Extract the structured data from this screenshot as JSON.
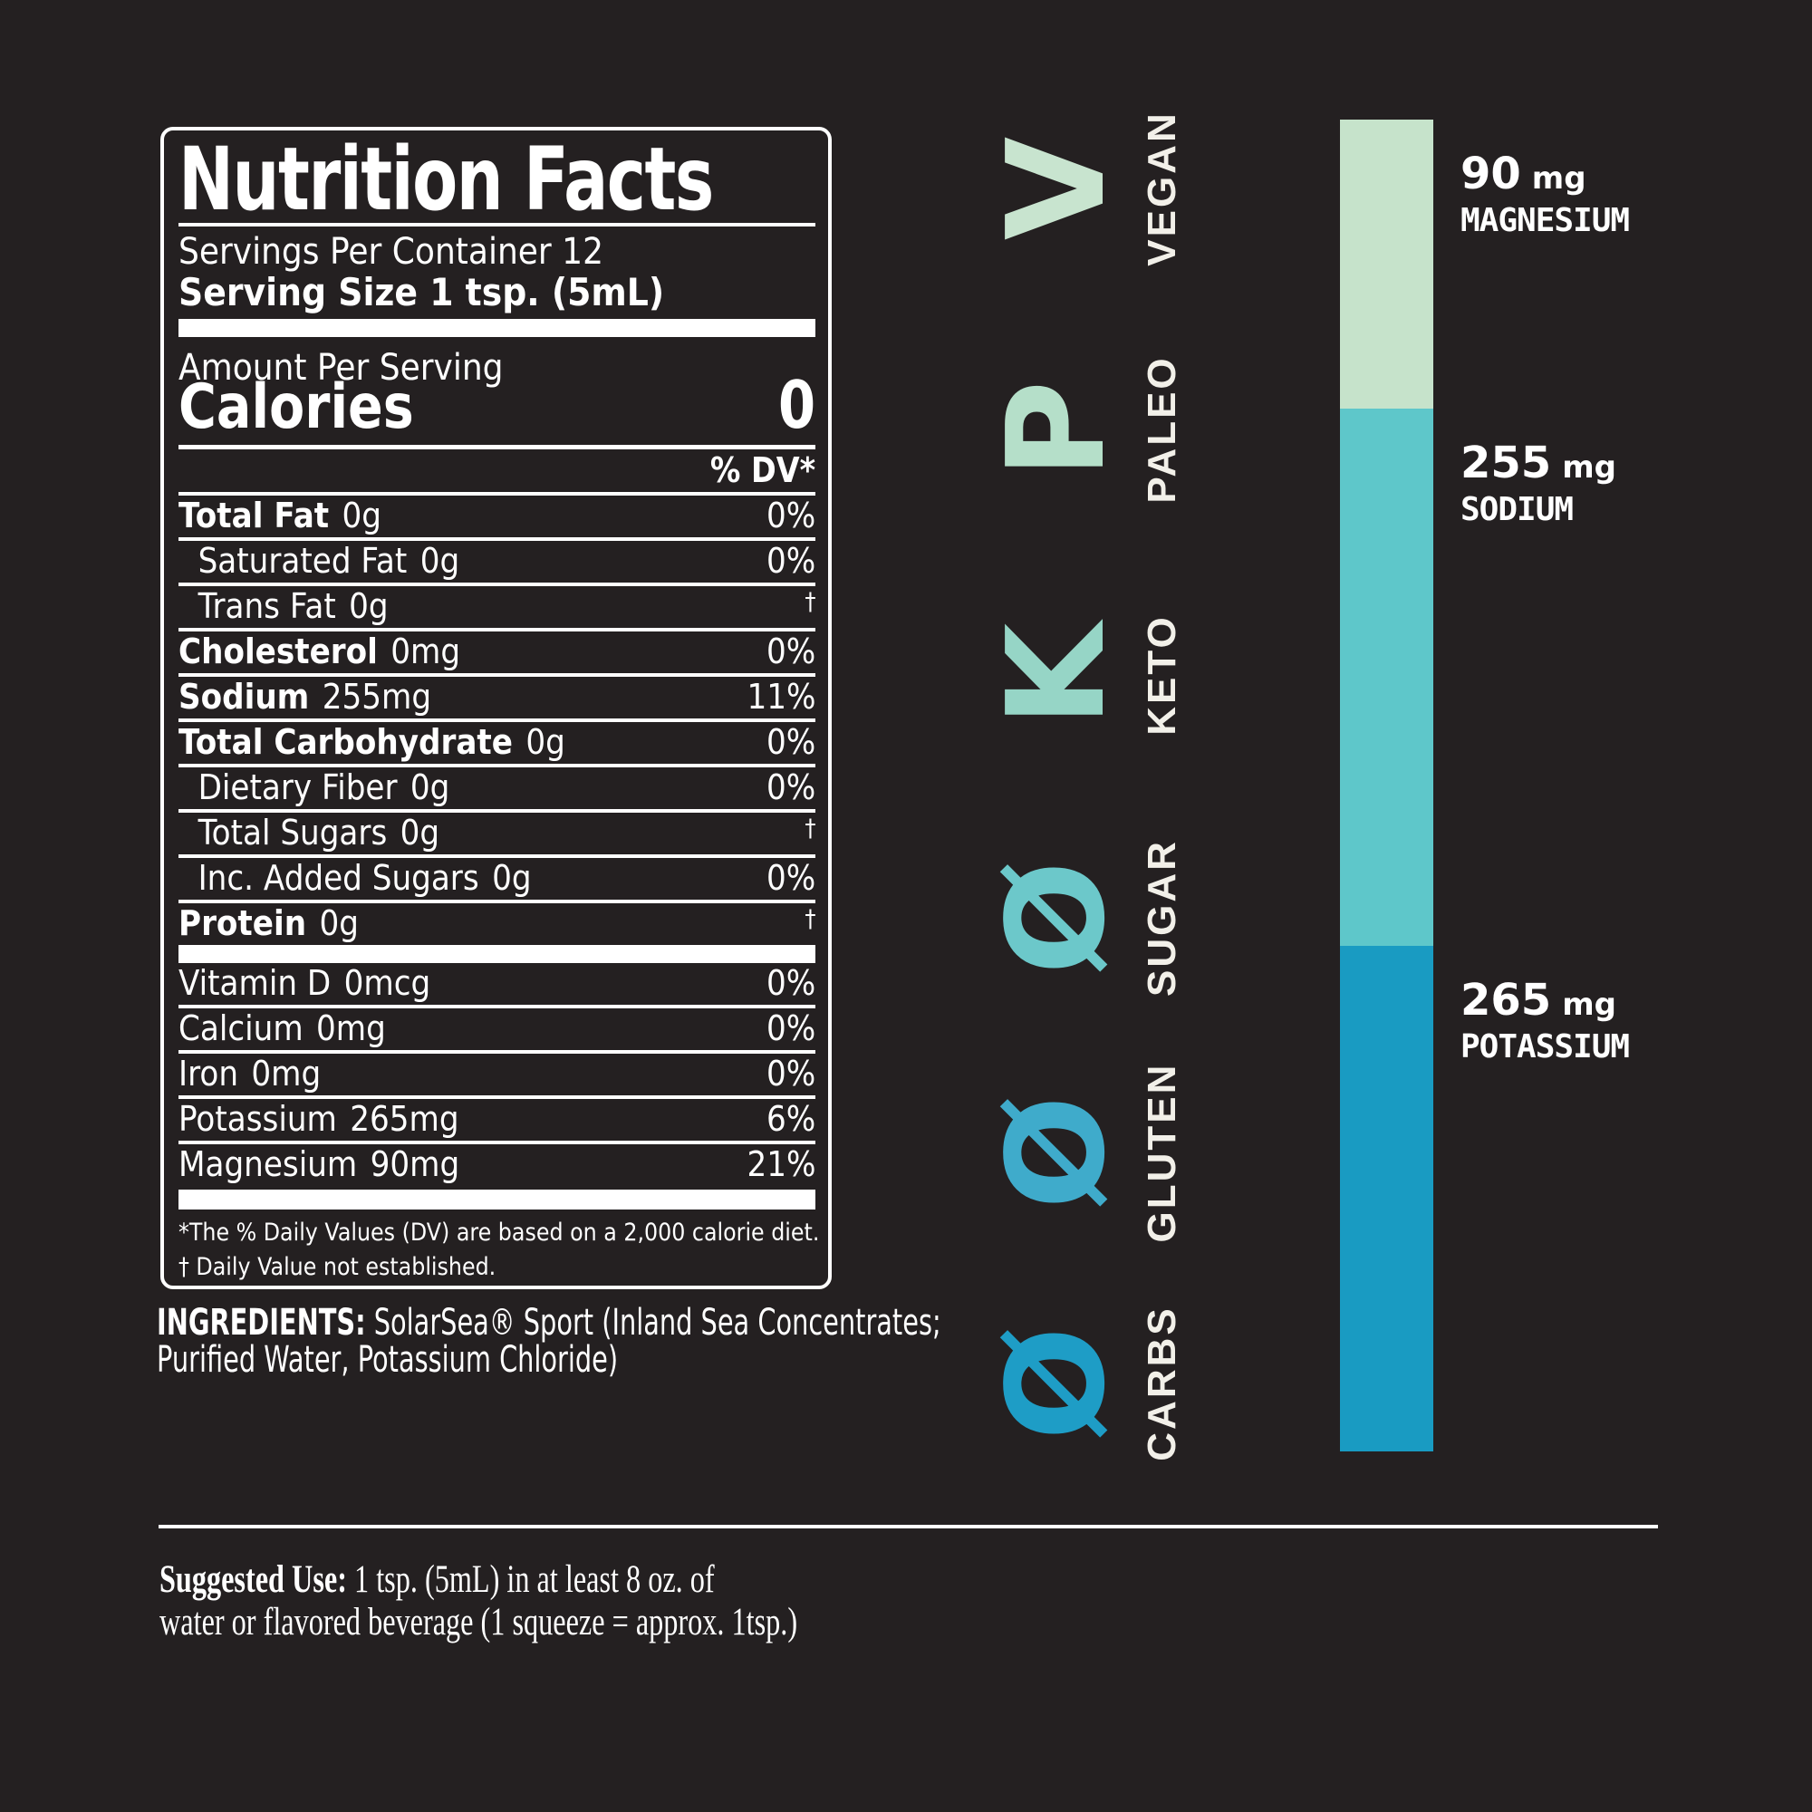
{
  "background": "#242021",
  "label": {
    "title": "Nutrition Facts",
    "servings_per_container": "Servings Per Container 12",
    "serving_size": "Serving Size 1 tsp. (5mL)",
    "amount_per_serving": "Amount Per Serving",
    "calories_label": "Calories",
    "calories_value": "0",
    "dv_header": "% DV*",
    "rows": [
      {
        "label": "Total Fat",
        "value": "0g",
        "dv": "0%",
        "bold": true,
        "indent": false
      },
      {
        "label": "Saturated Fat",
        "value": "0g",
        "dv": "0%",
        "bold": false,
        "indent": true
      },
      {
        "label": "Trans Fat",
        "value": "0g",
        "dv": "†",
        "bold": false,
        "indent": true
      },
      {
        "label": "Cholesterol",
        "value": "0mg",
        "dv": "0%",
        "bold": true,
        "indent": false
      },
      {
        "label": "Sodium",
        "value": "255mg",
        "dv": "11%",
        "bold": true,
        "indent": false
      },
      {
        "label": "Total Carbohydrate",
        "value": "0g",
        "dv": "0%",
        "bold": true,
        "indent": false
      },
      {
        "label": "Dietary Fiber",
        "value": "0g",
        "dv": "0%",
        "bold": false,
        "indent": true
      },
      {
        "label": "Total Sugars",
        "value": "0g",
        "dv": "†",
        "bold": false,
        "indent": true
      },
      {
        "label": "Inc. Added Sugars",
        "value": "0g",
        "dv": "0%",
        "bold": false,
        "indent": true
      },
      {
        "label": "Protein",
        "value": "0g",
        "dv": "†",
        "bold": true,
        "indent": false
      }
    ],
    "micronutrient_rows": [
      {
        "label": "Vitamin D",
        "value": "0mcg",
        "dv": "0%"
      },
      {
        "label": "Calcium",
        "value": "0mg",
        "dv": "0%"
      },
      {
        "label": "Iron",
        "value": "0mg",
        "dv": "0%"
      },
      {
        "label": "Potassium",
        "value": "265mg",
        "dv": "6%"
      },
      {
        "label": "Magnesium",
        "value": "90mg",
        "dv": "21%"
      }
    ],
    "footnote_dv": "*The % Daily Values (DV) are based on a 2,000 calorie diet.",
    "footnote_dagger": "† Daily Value not established."
  },
  "ingredients": {
    "label": "INGREDIENTS:",
    "lines": [
      "SolarSea® Sport (Inland Sea Concentrates;",
      "Purified Water, Potassium Chloride)"
    ]
  },
  "badges": [
    {
      "glyph": "V",
      "label": "VEGAN",
      "color": "#c8e4cf"
    },
    {
      "glyph": "P",
      "label": "PALEO",
      "color": "#b5dfc9"
    },
    {
      "glyph": "K",
      "label": "KETO",
      "color": "#96d5c6"
    },
    {
      "glyph": "Ø",
      "label": "SUGAR",
      "color": "#6cc8ca"
    },
    {
      "glyph": "Ø",
      "label": "GLUTEN",
      "color": "#3fabcb"
    },
    {
      "glyph": "Ø",
      "label": "CARBS",
      "color": "#1e9dc6"
    }
  ],
  "chart_data": {
    "type": "bar",
    "stacked": true,
    "title": "",
    "segments": [
      {
        "name": "MAGNESIUM",
        "value": 90,
        "unit": "mg",
        "color": "#c6e3cb"
      },
      {
        "name": "SODIUM",
        "value": 255,
        "unit": "mg",
        "color": "#5ec7ca"
      },
      {
        "name": "POTASSIUM",
        "value": 265,
        "unit": "mg",
        "color": "#199bc2"
      }
    ]
  },
  "suggested_use": {
    "label": "Suggested Use:",
    "line1": " 1 tsp. (5mL) in at least 8 oz. of",
    "line2": "water or flavored beverage (1 squeeze = approx. 1tsp.)"
  }
}
